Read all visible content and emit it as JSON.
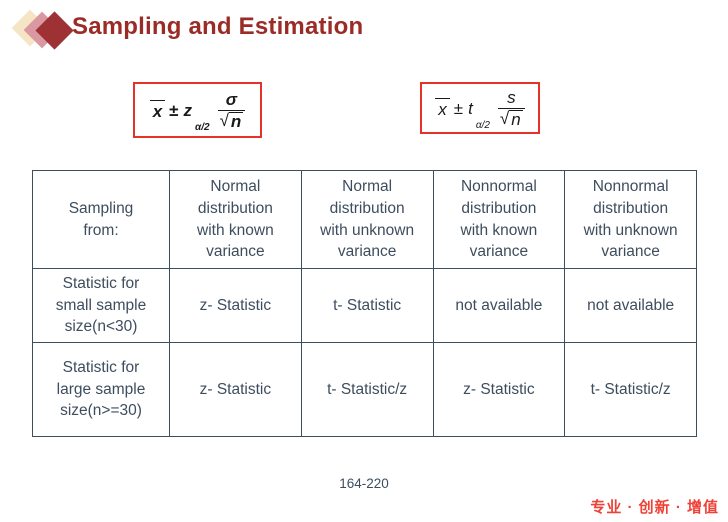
{
  "slide": {
    "title": "Sampling and Estimation",
    "page_number": "164-220",
    "footer_motto": "专业 · 创新 · 增值"
  },
  "colors": {
    "title_red": "#9B2B26",
    "formula_box_border_red": "#E6332A",
    "table_ink": "#3E4D5E",
    "motto_red": "#EF4136",
    "diamond_cream": "#F5E5C5",
    "diamond_rose": "#DA99A0",
    "diamond_dark_red": "#9E3134"
  },
  "formulas": [
    {
      "mean": "x",
      "pm": "±",
      "stat": "z",
      "subscript": "α/2",
      "numerator": "σ",
      "radical": "√",
      "radicand": "n"
    },
    {
      "mean": "x",
      "pm": "±",
      "stat": "t",
      "subscript": "α/2",
      "numerator": "s",
      "radical": "√",
      "radicand": "n"
    }
  ],
  "table": {
    "headers": [
      "Sampling\nfrom:",
      "Normal\ndistribution\nwith known\nvariance",
      "Normal\ndistribution\nwith unknown\nvariance",
      "Nonnormal\ndistribution\nwith known\nvariance",
      "Nonnormal\ndistribution\nwith unknown\nvariance"
    ],
    "rows": [
      {
        "label": "Statistic for\nsmall sample\nsize(n<30)",
        "cells": [
          "z- Statistic",
          "t- Statistic",
          "not available",
          "not available"
        ]
      },
      {
        "label": "Statistic for\nlarge sample\nsize(n>=30)",
        "cells": [
          "z- Statistic",
          "t- Statistic/z",
          "z- Statistic",
          "t- Statistic/z"
        ]
      }
    ]
  }
}
